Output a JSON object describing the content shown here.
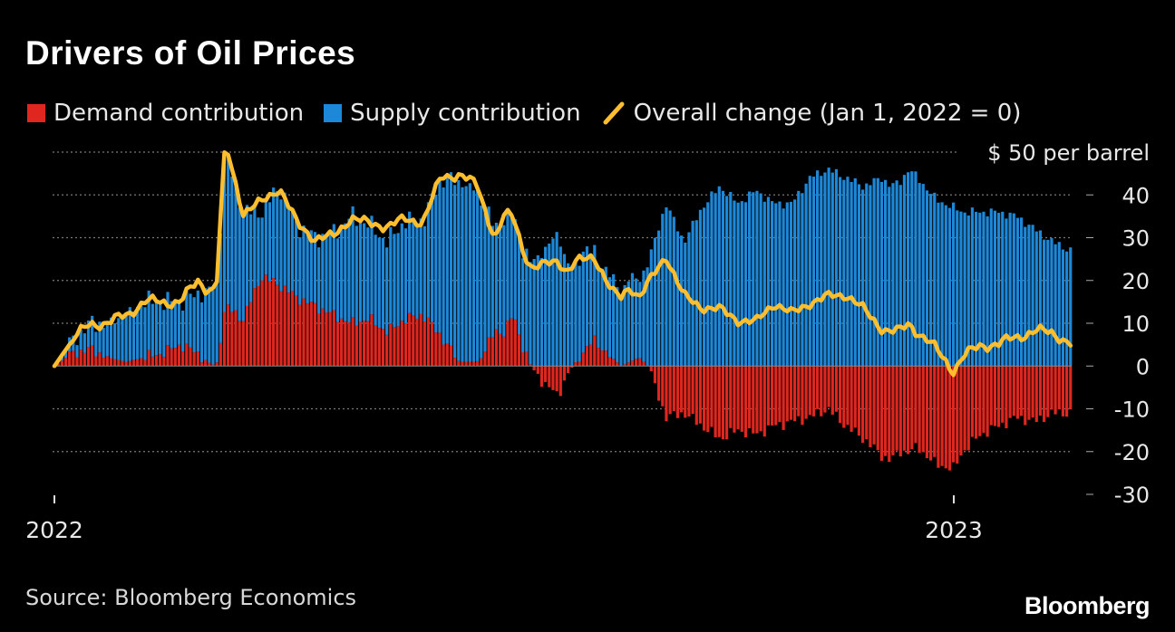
{
  "title": "Drivers of Oil Prices",
  "legend": {
    "demand": "Demand contribution",
    "supply": "Supply contribution",
    "overall": "Overall change (Jan 1, 2022 = 0)"
  },
  "colors": {
    "demand": "#e0271f",
    "supply": "#1e88d8",
    "overall": "#ffbe2e",
    "grid": "#7a7a7a",
    "background": "#000000"
  },
  "source": "Source: Bloomberg Economics",
  "brand": "Bloomberg",
  "chart_data": {
    "type": "bar",
    "title": "Drivers of Oil Prices",
    "ylabel": "$ 50 per barrel",
    "ylim": [
      -30,
      50
    ],
    "yticks": [
      40,
      30,
      20,
      10,
      0,
      -10,
      -20,
      -30
    ],
    "top_label": "$ 50 per barrel",
    "xticks": [
      {
        "label": "2022",
        "x": 0
      },
      {
        "label": "2023",
        "x": 1.0
      }
    ],
    "xlim": [
      0,
      1.132
    ],
    "grid": true,
    "legend_position": "top-left",
    "series": [
      {
        "name": "Demand contribution",
        "kind": "bar",
        "x": [
          0,
          0.02,
          0.04,
          0.06,
          0.08,
          0.1,
          0.12,
          0.14,
          0.16,
          0.17,
          0.18,
          0.19,
          0.21,
          0.23,
          0.25,
          0.27,
          0.29,
          0.31,
          0.33,
          0.35,
          0.37,
          0.39,
          0.41,
          0.43,
          0.45,
          0.47,
          0.49,
          0.5,
          0.51,
          0.52,
          0.53,
          0.54,
          0.56,
          0.57,
          0.58,
          0.59,
          0.6,
          0.62,
          0.63,
          0.64,
          0.65,
          0.66,
          0.68,
          0.7,
          0.72,
          0.74,
          0.76,
          0.78,
          0.8,
          0.82,
          0.84,
          0.86,
          0.88,
          0.9,
          0.92,
          0.93,
          0.94,
          0.95,
          0.96,
          0.98,
          1.0,
          1.01,
          1.03,
          1.05,
          1.07,
          1.09,
          1.11,
          1.13
        ],
        "values": [
          0,
          3,
          4,
          2,
          1,
          2,
          3,
          5,
          3,
          1,
          0,
          14,
          11,
          21,
          19,
          16,
          14,
          12,
          10,
          11,
          8,
          11,
          12,
          7,
          1,
          1,
          8,
          8,
          12,
          5,
          0,
          -3,
          -7,
          -2,
          1,
          4,
          6,
          2,
          0,
          1,
          2,
          0,
          -12,
          -11,
          -14,
          -17,
          -15,
          -16,
          -14,
          -13,
          -12,
          -10,
          -14,
          -17,
          -21,
          -22,
          -20,
          -20,
          -19,
          -23,
          -24,
          -20,
          -16,
          -14,
          -12,
          -13,
          -11,
          -11
        ]
      },
      {
        "name": "Supply contribution",
        "kind": "bar",
        "x": [
          0,
          0.02,
          0.04,
          0.06,
          0.08,
          0.1,
          0.12,
          0.14,
          0.16,
          0.17,
          0.18,
          0.19,
          0.21,
          0.23,
          0.25,
          0.27,
          0.29,
          0.31,
          0.33,
          0.35,
          0.37,
          0.39,
          0.41,
          0.43,
          0.45,
          0.47,
          0.49,
          0.5,
          0.51,
          0.52,
          0.53,
          0.54,
          0.56,
          0.57,
          0.58,
          0.59,
          0.6,
          0.62,
          0.63,
          0.64,
          0.65,
          0.66,
          0.68,
          0.7,
          0.72,
          0.74,
          0.76,
          0.78,
          0.8,
          0.82,
          0.84,
          0.86,
          0.88,
          0.9,
          0.92,
          0.93,
          0.94,
          0.95,
          0.96,
          0.98,
          1.0,
          1.01,
          1.03,
          1.05,
          1.07,
          1.09,
          1.11,
          1.13
        ],
        "values": [
          0,
          3,
          6,
          8,
          11,
          13,
          12,
          10,
          14,
          17,
          18,
          36,
          25,
          15,
          23,
          17,
          16,
          19,
          25,
          22,
          21,
          23,
          22,
          37,
          42,
          40,
          24,
          27,
          23,
          23,
          24,
          26,
          31,
          24,
          23,
          24,
          20,
          19,
          17,
          20,
          18,
          24,
          38,
          29,
          37,
          42,
          38,
          41,
          38,
          38,
          44,
          46,
          44,
          42,
          44,
          42,
          43,
          46,
          44,
          39,
          37,
          36,
          36,
          36,
          35,
          32,
          29,
          27
        ]
      },
      {
        "name": "Overall change (Jan 1, 2022 = 0)",
        "kind": "line",
        "x": [
          0,
          0.02,
          0.04,
          0.06,
          0.08,
          0.1,
          0.12,
          0.14,
          0.16,
          0.17,
          0.18,
          0.19,
          0.21,
          0.23,
          0.25,
          0.27,
          0.29,
          0.31,
          0.33,
          0.35,
          0.37,
          0.39,
          0.41,
          0.43,
          0.45,
          0.47,
          0.49,
          0.5,
          0.51,
          0.52,
          0.53,
          0.54,
          0.56,
          0.57,
          0.58,
          0.59,
          0.6,
          0.62,
          0.63,
          0.64,
          0.65,
          0.66,
          0.68,
          0.7,
          0.72,
          0.74,
          0.76,
          0.78,
          0.8,
          0.82,
          0.84,
          0.86,
          0.88,
          0.9,
          0.92,
          0.93,
          0.94,
          0.95,
          0.96,
          0.98,
          1.0,
          1.01,
          1.03,
          1.05,
          1.07,
          1.09,
          1.11,
          1.13
        ],
        "values": [
          0,
          6,
          10,
          10,
          12,
          15,
          15,
          15,
          20,
          18,
          18,
          52,
          36,
          38,
          42,
          33,
          30,
          30,
          35,
          33,
          33,
          34,
          34,
          44,
          45,
          42,
          30,
          35,
          35,
          28,
          23,
          23,
          25,
          22,
          24,
          25,
          26,
          17,
          16,
          19,
          16,
          19,
          26,
          16,
          14,
          13,
          11,
          10,
          15,
          12,
          15,
          16,
          17,
          13,
          9,
          8,
          8,
          10,
          8,
          4,
          -1,
          2,
          5,
          5,
          7,
          8,
          8,
          5
        ]
      }
    ]
  }
}
